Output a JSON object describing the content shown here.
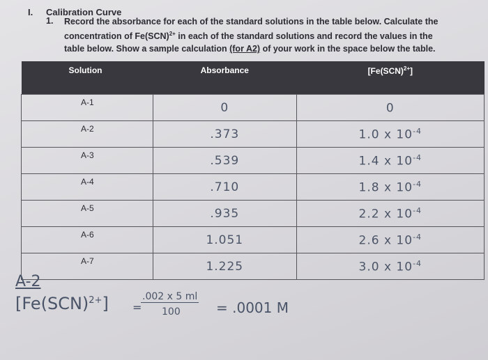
{
  "header": {
    "number": "I.",
    "title": "Calibration Curve"
  },
  "instruction": {
    "number": "1.",
    "parts": [
      "Record the absorbance for each of the standard solutions in the table below. Calculate the concentration of Fe(SCN)",
      "2+",
      " in each of the standard solutions and record the values in the table below. Show a sample calculation ",
      "(for A2)",
      " of your work in the space below the table."
    ]
  },
  "table": {
    "columns": [
      "Solution",
      "Absorbance",
      [
        "[Fe(SCN)",
        "2+",
        "]"
      ]
    ],
    "rows": [
      [
        "A-1",
        "0",
        [
          "0",
          ""
        ]
      ],
      [
        "A-2",
        ".373",
        [
          "1.0 x 10",
          "-4"
        ]
      ],
      [
        "A-3",
        ".539",
        [
          "1.4 x 10",
          "-4"
        ]
      ],
      [
        "A-4",
        ".710",
        [
          "1.8 x 10",
          "-4"
        ]
      ],
      [
        "A-5",
        ".935",
        [
          "2.2 x 10",
          "-4"
        ]
      ],
      [
        "A-6",
        "1.051",
        [
          "2.6 x 10",
          "-4"
        ]
      ],
      [
        "A-7",
        "1.225",
        [
          "3.0 x 10",
          "-4"
        ]
      ]
    ]
  },
  "calculation": {
    "label": "A-2",
    "lhs": [
      "[Fe(SCN)",
      "2+",
      "]"
    ],
    "equals": "=",
    "numerator": ".002 x 5 ml",
    "denominator": "100",
    "result": "= .0001 M"
  }
}
